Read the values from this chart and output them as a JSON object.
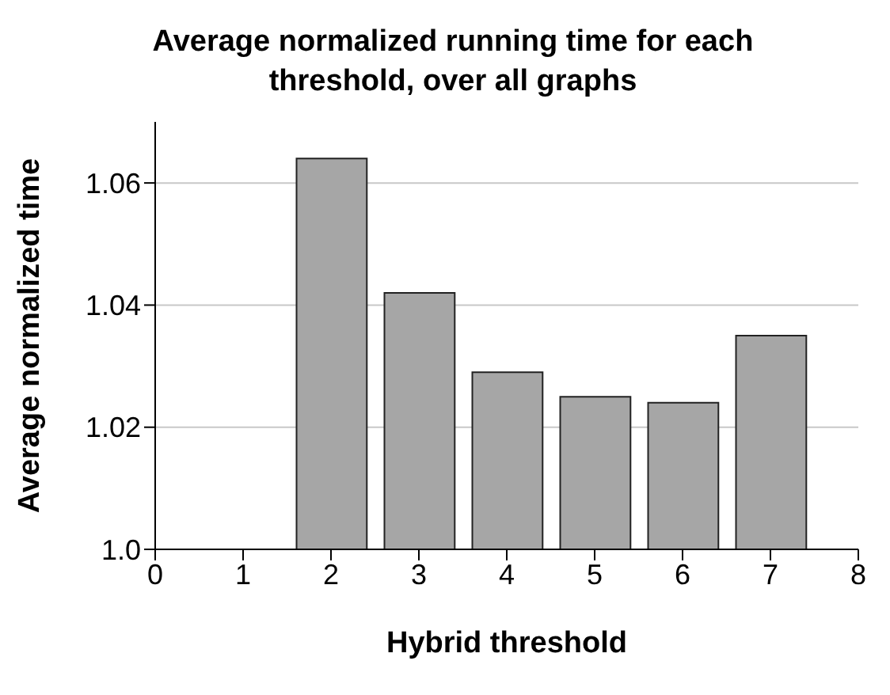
{
  "chart_data": {
    "type": "bar",
    "title": "Average normalized running time for each threshold, over all graphs",
    "xlabel": "Hybrid threshold",
    "ylabel": "Average normalized time",
    "x": [
      2,
      3,
      4,
      5,
      6,
      7
    ],
    "values": [
      1.064,
      1.042,
      1.029,
      1.025,
      1.024,
      1.035
    ],
    "color": "#a6a6a6",
    "xlim": [
      0,
      8
    ],
    "xticks": [
      0,
      1,
      2,
      3,
      4,
      5,
      6,
      7,
      8
    ],
    "ylim": [
      1.0,
      1.07
    ],
    "yticks": [
      {
        "value": 1.0,
        "label": "1.0"
      },
      1.02,
      1.04,
      1.06
    ],
    "grid": "y"
  }
}
